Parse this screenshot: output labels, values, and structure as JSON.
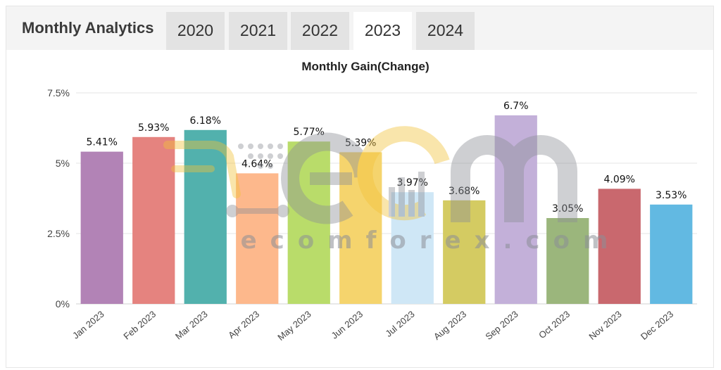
{
  "header": {
    "title": "Monthly Analytics",
    "tabs": [
      {
        "label": "2020",
        "active": false
      },
      {
        "label": "2021",
        "active": false
      },
      {
        "label": "2022",
        "active": false
      },
      {
        "label": "2023",
        "active": true
      },
      {
        "label": "2024",
        "active": false
      }
    ]
  },
  "watermark": {
    "text": "ecomforex.com"
  },
  "chart_data": {
    "type": "bar",
    "title": "Monthly Gain(Change)",
    "xlabel": "",
    "ylabel": "",
    "categories": [
      "Jan 2023",
      "Feb 2023",
      "Mar 2023",
      "Apr 2023",
      "May 2023",
      "Jun 2023",
      "Jul 2023",
      "Aug 2023",
      "Sep 2023",
      "Oct 2023",
      "Nov 2023",
      "Dec 2023"
    ],
    "values": [
      5.41,
      5.93,
      6.18,
      4.64,
      5.77,
      5.39,
      3.97,
      3.68,
      6.7,
      3.05,
      4.09,
      3.53
    ],
    "data_labels": [
      "5.41%",
      "5.93%",
      "6.18%",
      "4.64%",
      "5.77%",
      "5.39%",
      "3.97%",
      "3.68%",
      "6.7%",
      "3.05%",
      "4.09%",
      "3.53%"
    ],
    "colors": [
      "#b283b6",
      "#e5837f",
      "#52b1ad",
      "#fdb88c",
      "#b9dc6a",
      "#f5d46d",
      "#cfe7f6",
      "#d4cb62",
      "#c3b0d9",
      "#9bb67c",
      "#c9686e",
      "#62b9e2"
    ],
    "ylim": [
      0,
      7.5
    ],
    "yticks": [
      0,
      2.5,
      5,
      7.5
    ],
    "ytick_labels": [
      "0%",
      "2.5%",
      "5%",
      "7.5%"
    ],
    "grid": true,
    "legend": "none"
  }
}
